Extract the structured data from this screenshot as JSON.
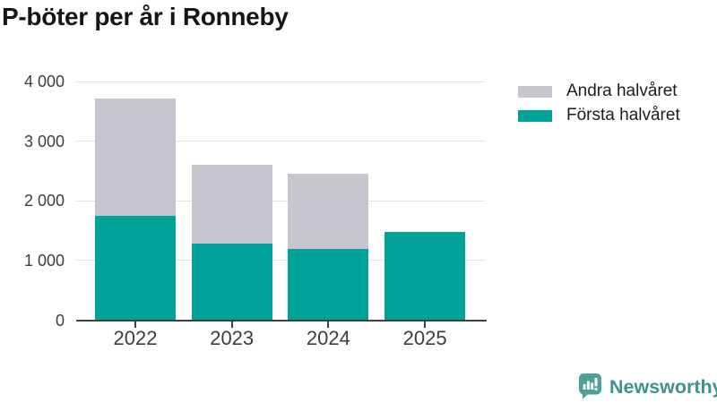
{
  "title": "P-böter per år i Ronneby",
  "chart_data": {
    "type": "bar",
    "stacked": true,
    "title": "P-böter per år i Ronneby",
    "xlabel": "",
    "ylabel": "",
    "categories": [
      "2022",
      "2023",
      "2024",
      "2025"
    ],
    "series": [
      {
        "name": "Första halvåret",
        "color": "#00a29a",
        "values": [
          1750,
          1280,
          1190,
          1480
        ]
      },
      {
        "name": "Andra halvåret",
        "color": "#c7c5ce",
        "values": [
          1960,
          1320,
          1260,
          0
        ]
      }
    ],
    "stack_totals": [
      3710,
      2600,
      2450,
      1480
    ],
    "ylim": [
      0,
      4000
    ],
    "ytick_values": [
      0,
      1000,
      2000,
      3000,
      4000
    ],
    "ytick_labels": [
      "0",
      "1 000",
      "2 000",
      "3 000",
      "4 000"
    ],
    "grid": true,
    "legend_position": "top-right"
  },
  "legend": {
    "items": [
      {
        "label": "Andra halvåret",
        "color": "#c7c5ce"
      },
      {
        "label": "Första halvåret",
        "color": "#00a29a"
      }
    ]
  },
  "branding": {
    "label": "Newsworthy",
    "icon": "newsworthy-logo-icon",
    "icon_color": "#4d9f99",
    "text_color": "#3c938d"
  },
  "colors": {
    "first_half": "#00a29a",
    "second_half": "#c7c5ce",
    "grid": "#e2e2e2",
    "axis": "#404040",
    "label_text": "#3d3d3d",
    "title_text": "#161616"
  }
}
